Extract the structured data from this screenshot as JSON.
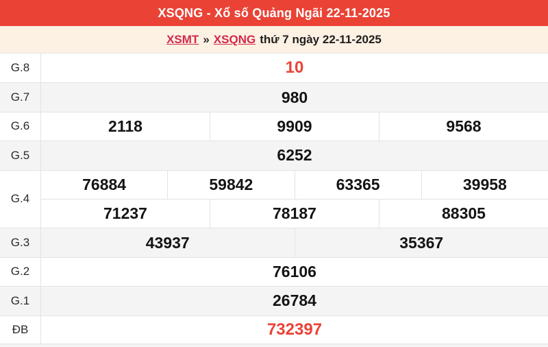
{
  "header": {
    "title": "XSQNG - Xổ số Quảng Ngãi 22-11-2025"
  },
  "breadcrumb": {
    "xsmt": "XSMT",
    "separator": "»",
    "xsqng": "XSQNG",
    "date_text": "thứ 7 ngày 22-11-2025"
  },
  "colors": {
    "header_background": "#EA4336",
    "breadcrumb_background": "#FDF1E3",
    "link_red": "#D2294B",
    "highlight_red": "#EA4336",
    "alt_row_gray": "#F4F4F4",
    "border_gray": "#E3E3E3"
  },
  "table": {
    "rows": [
      {
        "label": "G.8",
        "cells": [
          "10"
        ]
      },
      {
        "label": "G.7",
        "cells": [
          "980"
        ]
      },
      {
        "label": "G.6",
        "cells": [
          "2118",
          "9909",
          "9568"
        ]
      },
      {
        "label": "G.5",
        "cells": [
          "6252"
        ]
      },
      {
        "label": "G.4",
        "lines": [
          [
            "76884",
            "59842",
            "63365",
            "39958"
          ],
          [
            "71237",
            "78187",
            "88305"
          ]
        ]
      },
      {
        "label": "G.3",
        "cells": [
          "43937",
          "35367"
        ]
      },
      {
        "label": "G.2",
        "cells": [
          "76106"
        ]
      },
      {
        "label": "G.1",
        "cells": [
          "26784"
        ]
      },
      {
        "label": "ĐB",
        "cells": [
          "732397"
        ]
      }
    ]
  }
}
